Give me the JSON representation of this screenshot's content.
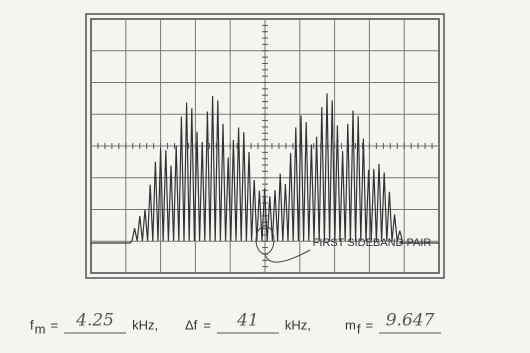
{
  "screen": {
    "annotation": "FIRST SIDEBAND PAIR"
  },
  "readings": [
    {
      "symbol": "f",
      "sub": "m",
      "eq": "=",
      "value": "4.25",
      "unit": "kHz,"
    },
    {
      "symbol": "Δf",
      "eq": "=",
      "value": "41",
      "unit": "kHz,"
    },
    {
      "symbol": "m",
      "sub": "f",
      "eq": "=",
      "value": "9.647"
    }
  ]
}
